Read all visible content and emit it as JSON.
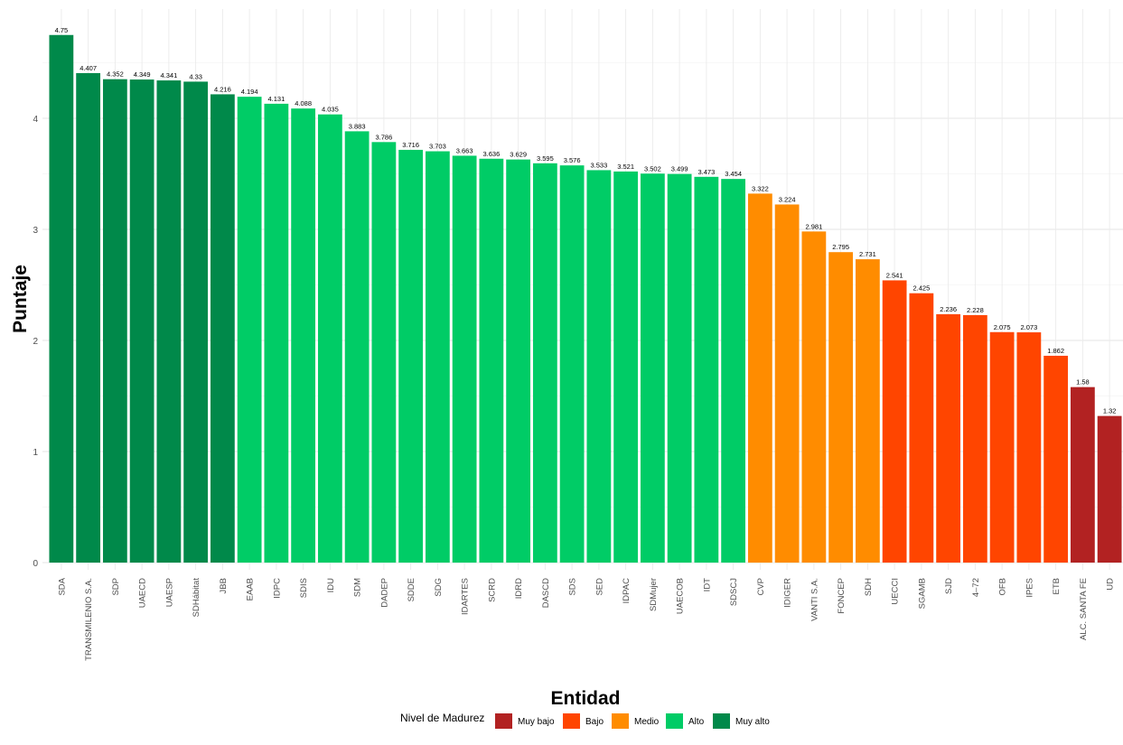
{
  "chart_data": {
    "type": "bar",
    "title": "",
    "xlabel": "Entidad",
    "ylabel": "Puntaje",
    "ylim": [
      0,
      4.75
    ],
    "yticks": [
      0,
      1,
      2,
      3,
      4
    ],
    "grid": true,
    "legend": {
      "title": "Nivel de Madurez",
      "placement": "bottom",
      "entries": [
        {
          "label": "Muy bajo",
          "color": "#B22222"
        },
        {
          "label": "Bajo",
          "color": "#FF4500"
        },
        {
          "label": "Medio",
          "color": "#FF8C00"
        },
        {
          "label": "Alto",
          "color": "#00CC66"
        },
        {
          "label": "Muy alto",
          "color": "#00894A"
        }
      ]
    },
    "categories": [
      "SDA",
      "TRANSMILENIO S.A.",
      "SDP",
      "UAECD",
      "UAESP",
      "SDHábitat",
      "JBB",
      "EAAB",
      "IDPC",
      "SDIS",
      "IDU",
      "SDM",
      "DADEP",
      "SDDE",
      "SDG",
      "IDARTES",
      "SCRD",
      "IDRD",
      "DASCD",
      "SDS",
      "SED",
      "IDPAC",
      "SDMujer",
      "UAECOB",
      "IDT",
      "SDSCJ",
      "CVP",
      "IDIGER",
      "VANTI S.A.",
      "FONCEP",
      "SDH",
      "UECCI",
      "SGAMB",
      "SJD",
      "4–72",
      "OFB",
      "IPES",
      "ETB",
      "ALC. SANTA FE",
      "UD"
    ],
    "values": [
      4.75,
      4.407,
      4.352,
      4.349,
      4.341,
      4.33,
      4.216,
      4.194,
      4.131,
      4.088,
      4.035,
      3.883,
      3.786,
      3.716,
      3.703,
      3.663,
      3.636,
      3.629,
      3.595,
      3.576,
      3.533,
      3.521,
      3.502,
      3.499,
      3.473,
      3.454,
      3.322,
      3.224,
      2.981,
      2.795,
      2.731,
      2.541,
      2.425,
      2.236,
      2.228,
      2.075,
      2.073,
      1.862,
      1.58,
      1.32
    ],
    "value_labels": [
      "4.75",
      "4.407",
      "4.352",
      "4.349",
      "4.341",
      "4.33",
      "4.216",
      "4.194",
      "4.131",
      "4.088",
      "4.035",
      "3.883",
      "3.786",
      "3.716",
      "3.703",
      "3.663",
      "3.636",
      "3.629",
      "3.595",
      "3.576",
      "3.533",
      "3.521",
      "3.502",
      "3.499",
      "3.473",
      "3.454",
      "3.322",
      "3.224",
      "2.981",
      "2.795",
      "2.731",
      "2.541",
      "2.425",
      "2.236",
      "2.228",
      "2.075",
      "2.073",
      "1.862",
      "1.58",
      "1.32"
    ],
    "levels": [
      "Muy alto",
      "Muy alto",
      "Muy alto",
      "Muy alto",
      "Muy alto",
      "Muy alto",
      "Muy alto",
      "Alto",
      "Alto",
      "Alto",
      "Alto",
      "Alto",
      "Alto",
      "Alto",
      "Alto",
      "Alto",
      "Alto",
      "Alto",
      "Alto",
      "Alto",
      "Alto",
      "Alto",
      "Alto",
      "Alto",
      "Alto",
      "Alto",
      "Medio",
      "Medio",
      "Medio",
      "Medio",
      "Medio",
      "Bajo",
      "Bajo",
      "Bajo",
      "Bajo",
      "Bajo",
      "Bajo",
      "Bajo",
      "Muy bajo",
      "Muy bajo"
    ]
  }
}
